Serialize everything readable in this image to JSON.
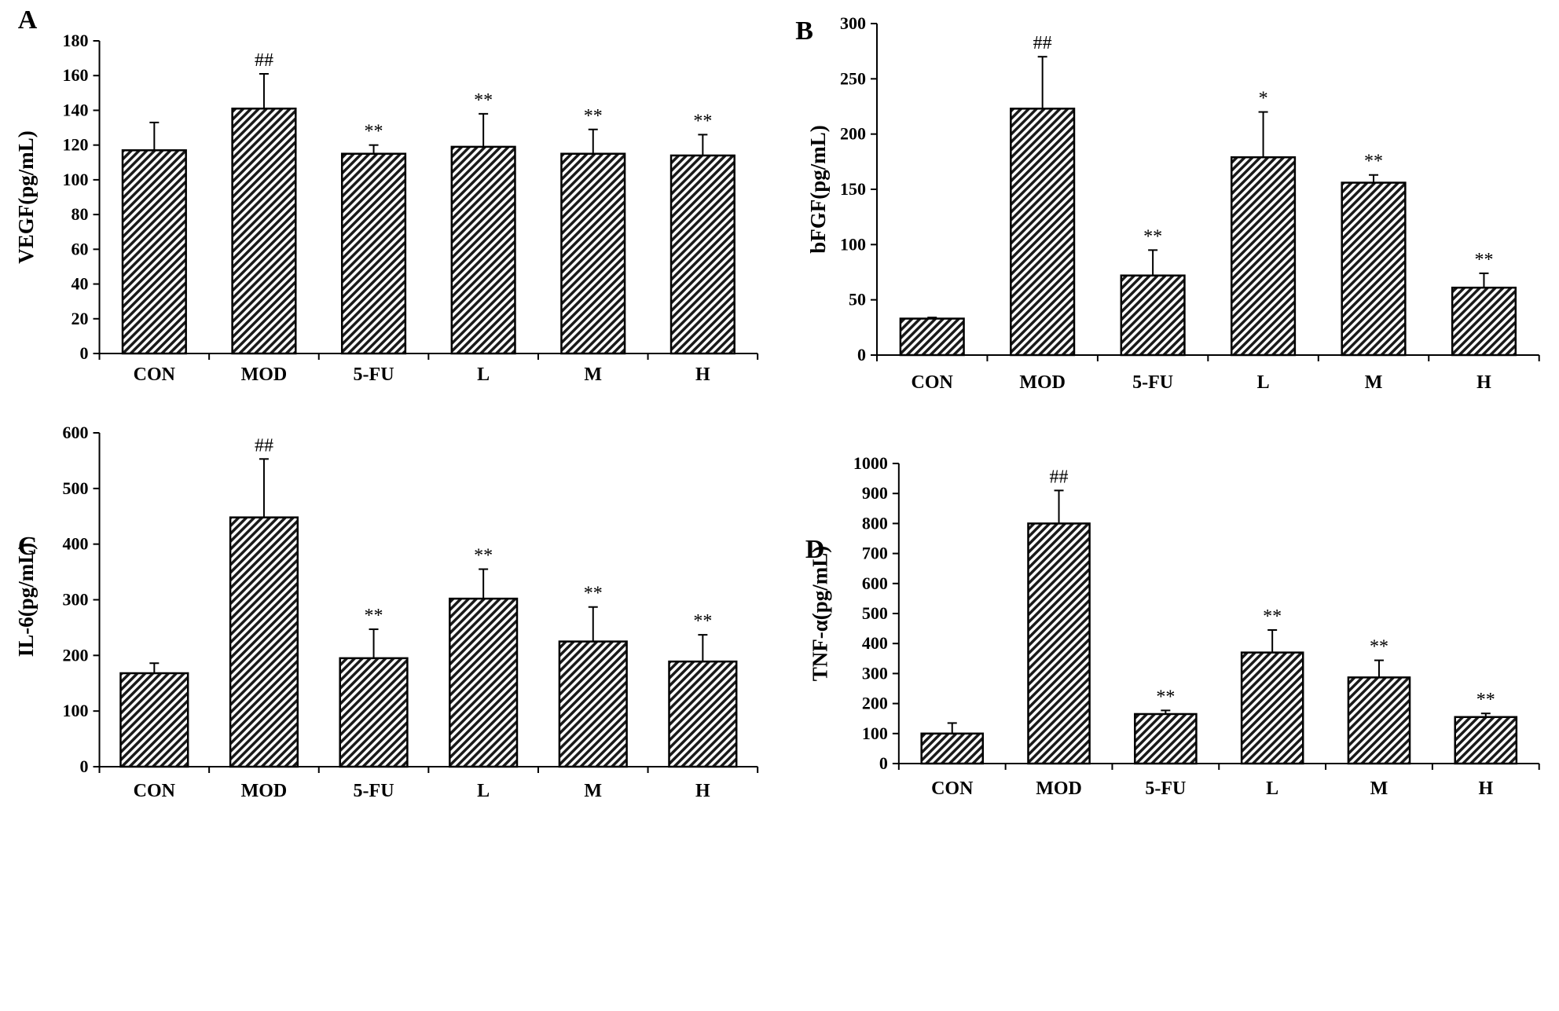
{
  "chart_data": [
    {
      "type": "bar",
      "panel": "A",
      "ylabel": "VEGF(pg/mL)",
      "categories": [
        "CON",
        "MOD",
        "5-FU",
        "L",
        "M",
        "H"
      ],
      "values": [
        117,
        141,
        115,
        119,
        115,
        114
      ],
      "errors": [
        16,
        20,
        5,
        19,
        14,
        12
      ],
      "significance": [
        "",
        "##",
        "**",
        "**",
        "**",
        "**"
      ],
      "ylim": [
        0,
        180
      ],
      "yticks": [
        0,
        20,
        40,
        60,
        80,
        100,
        120,
        140,
        160,
        180
      ]
    },
    {
      "type": "bar",
      "panel": "B",
      "ylabel": "bFGF(pg/mL)",
      "categories": [
        "CON",
        "MOD",
        "5-FU",
        "L",
        "M",
        "H"
      ],
      "values": [
        33,
        223,
        72,
        179,
        156,
        61
      ],
      "errors": [
        1,
        47,
        23,
        41,
        7,
        13
      ],
      "significance": [
        "",
        "##",
        "**",
        "*",
        "**",
        "**"
      ],
      "ylim": [
        0,
        300
      ],
      "yticks": [
        0,
        50,
        100,
        150,
        200,
        250,
        300
      ]
    },
    {
      "type": "bar",
      "panel": "C",
      "ylabel": "IL-6(pg/mL)",
      "categories": [
        "CON",
        "MOD",
        "5-FU",
        "L",
        "M",
        "H"
      ],
      "values": [
        168,
        448,
        195,
        302,
        225,
        189
      ],
      "errors": [
        18,
        105,
        52,
        53,
        62,
        48
      ],
      "significance": [
        "",
        "##",
        "**",
        "**",
        "**",
        "**"
      ],
      "ylim": [
        0,
        600
      ],
      "yticks": [
        0,
        100,
        200,
        300,
        400,
        500,
        600
      ]
    },
    {
      "type": "bar",
      "panel": "D",
      "ylabel": "TNF-α(pg/mL)",
      "categories": [
        "CON",
        "MOD",
        "5-FU",
        "L",
        "M",
        "H"
      ],
      "values": [
        100,
        800,
        165,
        370,
        287,
        155
      ],
      "errors": [
        35,
        110,
        12,
        75,
        57,
        12
      ],
      "significance": [
        "",
        "##",
        "**",
        "**",
        "**",
        "**"
      ],
      "ylim": [
        0,
        1000
      ],
      "yticks": [
        0,
        100,
        200,
        300,
        400,
        500,
        600,
        700,
        800,
        900,
        1000
      ]
    }
  ]
}
